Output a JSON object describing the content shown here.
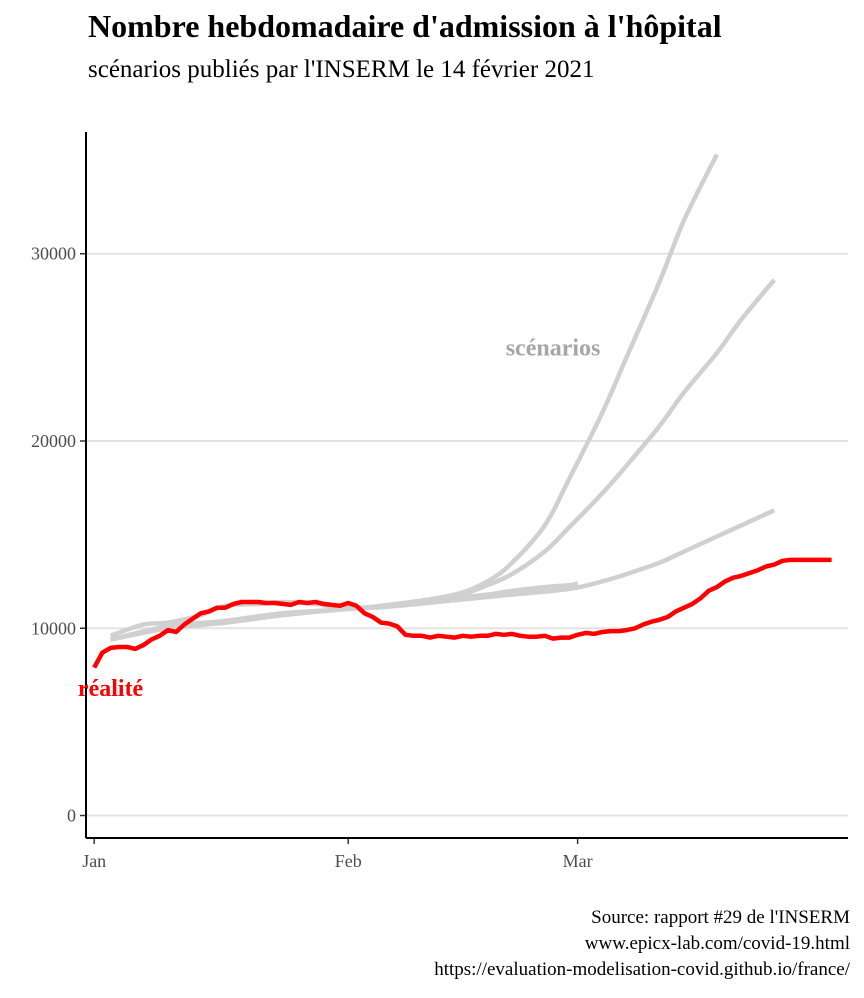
{
  "chart_data": {
    "type": "line",
    "title": "Nombre hebdomadaire d'admission à l'hôpital",
    "subtitle": "scénarios publiés par l'INSERM le 14 février 2021",
    "xlabel": "",
    "ylabel": "",
    "xlim": [
      "2020-12-31",
      "2021-04-03"
    ],
    "ylim": [
      -1200,
      36500
    ],
    "y_ticks": [
      0,
      10000,
      20000,
      30000
    ],
    "x_ticks": [
      {
        "date": "2021-01-01",
        "label": "Jan"
      },
      {
        "date": "2021-02-01",
        "label": "Feb"
      },
      {
        "date": "2021-03-01",
        "label": "Mar"
      }
    ],
    "grid": {
      "horizontal": true,
      "vertical": false
    },
    "annotations": [
      {
        "text": "scénarios",
        "x": "2021-02-26",
        "y": 25000,
        "color": "#a6a6a6"
      },
      {
        "text": "réalité",
        "x": "2021-01-03",
        "y": 6800,
        "color": "#ff0000"
      }
    ],
    "series": [
      {
        "kind": "scenario",
        "color": "#d0d0d0",
        "x": [
          "2021-01-03",
          "2021-01-10",
          "2021-01-17",
          "2021-01-24",
          "2021-01-31",
          "2021-02-07",
          "2021-02-14",
          "2021-02-18",
          "2021-02-21",
          "2021-02-25",
          "2021-02-28",
          "2021-03-04",
          "2021-03-07",
          "2021-03-11",
          "2021-03-14",
          "2021-03-18"
        ],
        "values": [
          9400,
          10100,
          10400,
          10800,
          11000,
          11300,
          11800,
          12500,
          13500,
          15500,
          18000,
          21500,
          24500,
          28500,
          31800,
          35300
        ]
      },
      {
        "kind": "scenario",
        "color": "#d0d0d0",
        "x": [
          "2021-01-03",
          "2021-01-10",
          "2021-01-17",
          "2021-01-24",
          "2021-01-31",
          "2021-02-07",
          "2021-02-14",
          "2021-02-18",
          "2021-02-21",
          "2021-02-25",
          "2021-02-28",
          "2021-03-04",
          "2021-03-07",
          "2021-03-11",
          "2021-03-14",
          "2021-03-18",
          "2021-03-21",
          "2021-03-25"
        ],
        "values": [
          9400,
          10000,
          10300,
          10700,
          11000,
          11200,
          11700,
          12300,
          12900,
          14100,
          15400,
          17200,
          18700,
          20800,
          22600,
          24700,
          26500,
          28600
        ]
      },
      {
        "kind": "scenario",
        "color": "#d0d0d0",
        "x": [
          "2021-01-03",
          "2021-01-10",
          "2021-01-17",
          "2021-01-24",
          "2021-01-31",
          "2021-02-07",
          "2021-02-14",
          "2021-02-21",
          "2021-02-28",
          "2021-03-04",
          "2021-03-07",
          "2021-03-11",
          "2021-03-14",
          "2021-03-18",
          "2021-03-21",
          "2021-03-25"
        ],
        "values": [
          9400,
          10000,
          10300,
          10700,
          11000,
          11200,
          11500,
          11800,
          12100,
          12500,
          12900,
          13500,
          14100,
          14900,
          15500,
          16300
        ]
      },
      {
        "kind": "scenario",
        "color": "#d0d0d0",
        "x": [
          "2021-01-03",
          "2021-01-07",
          "2021-01-10",
          "2021-01-14",
          "2021-01-17",
          "2021-01-21",
          "2021-01-24",
          "2021-01-28",
          "2021-01-31",
          "2021-02-04",
          "2021-02-07",
          "2021-02-11",
          "2021-02-14",
          "2021-02-18",
          "2021-02-21",
          "2021-02-25",
          "2021-02-28",
          "2021-03-01"
        ],
        "values": [
          9600,
          10200,
          10300,
          10700,
          11200,
          11300,
          11400,
          11300,
          11100,
          11100,
          11200,
          11400,
          11600,
          11800,
          12000,
          12200,
          12300,
          12400
        ]
      },
      {
        "kind": "observed",
        "color": "#ff0000",
        "x": [
          "2021-01-01",
          "2021-01-02",
          "2021-01-03",
          "2021-01-04",
          "2021-01-05",
          "2021-01-06",
          "2021-01-07",
          "2021-01-08",
          "2021-01-09",
          "2021-01-10",
          "2021-01-11",
          "2021-01-12",
          "2021-01-13",
          "2021-01-14",
          "2021-01-15",
          "2021-01-16",
          "2021-01-17",
          "2021-01-18",
          "2021-01-19",
          "2021-01-20",
          "2021-01-21",
          "2021-01-22",
          "2021-01-23",
          "2021-01-24",
          "2021-01-25",
          "2021-01-26",
          "2021-01-27",
          "2021-01-28",
          "2021-01-29",
          "2021-01-30",
          "2021-01-31",
          "2021-02-01",
          "2021-02-02",
          "2021-02-03",
          "2021-02-04",
          "2021-02-05",
          "2021-02-06",
          "2021-02-07",
          "2021-02-08",
          "2021-02-09",
          "2021-02-10",
          "2021-02-11",
          "2021-02-12",
          "2021-02-13",
          "2021-02-14",
          "2021-02-15",
          "2021-02-16",
          "2021-02-17",
          "2021-02-18",
          "2021-02-19",
          "2021-02-20",
          "2021-02-21",
          "2021-02-22",
          "2021-02-23",
          "2021-02-24",
          "2021-02-25",
          "2021-02-26",
          "2021-02-27",
          "2021-02-28",
          "2021-03-01",
          "2021-03-02",
          "2021-03-03",
          "2021-03-04",
          "2021-03-05",
          "2021-03-06",
          "2021-03-07",
          "2021-03-08",
          "2021-03-09",
          "2021-03-10",
          "2021-03-11",
          "2021-03-12",
          "2021-03-13",
          "2021-03-14",
          "2021-03-15",
          "2021-03-16",
          "2021-03-17",
          "2021-03-18",
          "2021-03-19",
          "2021-03-20",
          "2021-03-21",
          "2021-03-22",
          "2021-03-23",
          "2021-03-24",
          "2021-03-25",
          "2021-03-26",
          "2021-03-27",
          "2021-03-28",
          "2021-03-29",
          "2021-03-30",
          "2021-03-31",
          "2021-04-01"
        ],
        "values": [
          7900,
          8700,
          8950,
          9000,
          9000,
          8900,
          9100,
          9400,
          9600,
          9900,
          9800,
          10200,
          10500,
          10800,
          10900,
          11100,
          11100,
          11300,
          11400,
          11400,
          11400,
          11350,
          11350,
          11300,
          11250,
          11400,
          11350,
          11400,
          11300,
          11250,
          11200,
          11350,
          11200,
          10800,
          10600,
          10300,
          10250,
          10100,
          9650,
          9600,
          9600,
          9500,
          9600,
          9550,
          9500,
          9600,
          9550,
          9600,
          9600,
          9700,
          9650,
          9700,
          9600,
          9550,
          9550,
          9600,
          9450,
          9500,
          9500,
          9650,
          9750,
          9700,
          9800,
          9850,
          9850,
          9900,
          10000,
          10200,
          10350,
          10450,
          10600,
          10900,
          11100,
          11300,
          11600,
          12000,
          12200,
          12500,
          12700,
          12800,
          12950,
          13100,
          13300,
          13400,
          13600,
          13650,
          13650,
          13650,
          13650,
          13650,
          13650
        ]
      }
    ]
  },
  "caption": {
    "line1": "Source: rapport #29 de l'INSERM ",
    "line2": "www.epicx-lab.com/covid-19.html",
    "line3": "https://evaluation-modelisation-covid.github.io/france/"
  }
}
